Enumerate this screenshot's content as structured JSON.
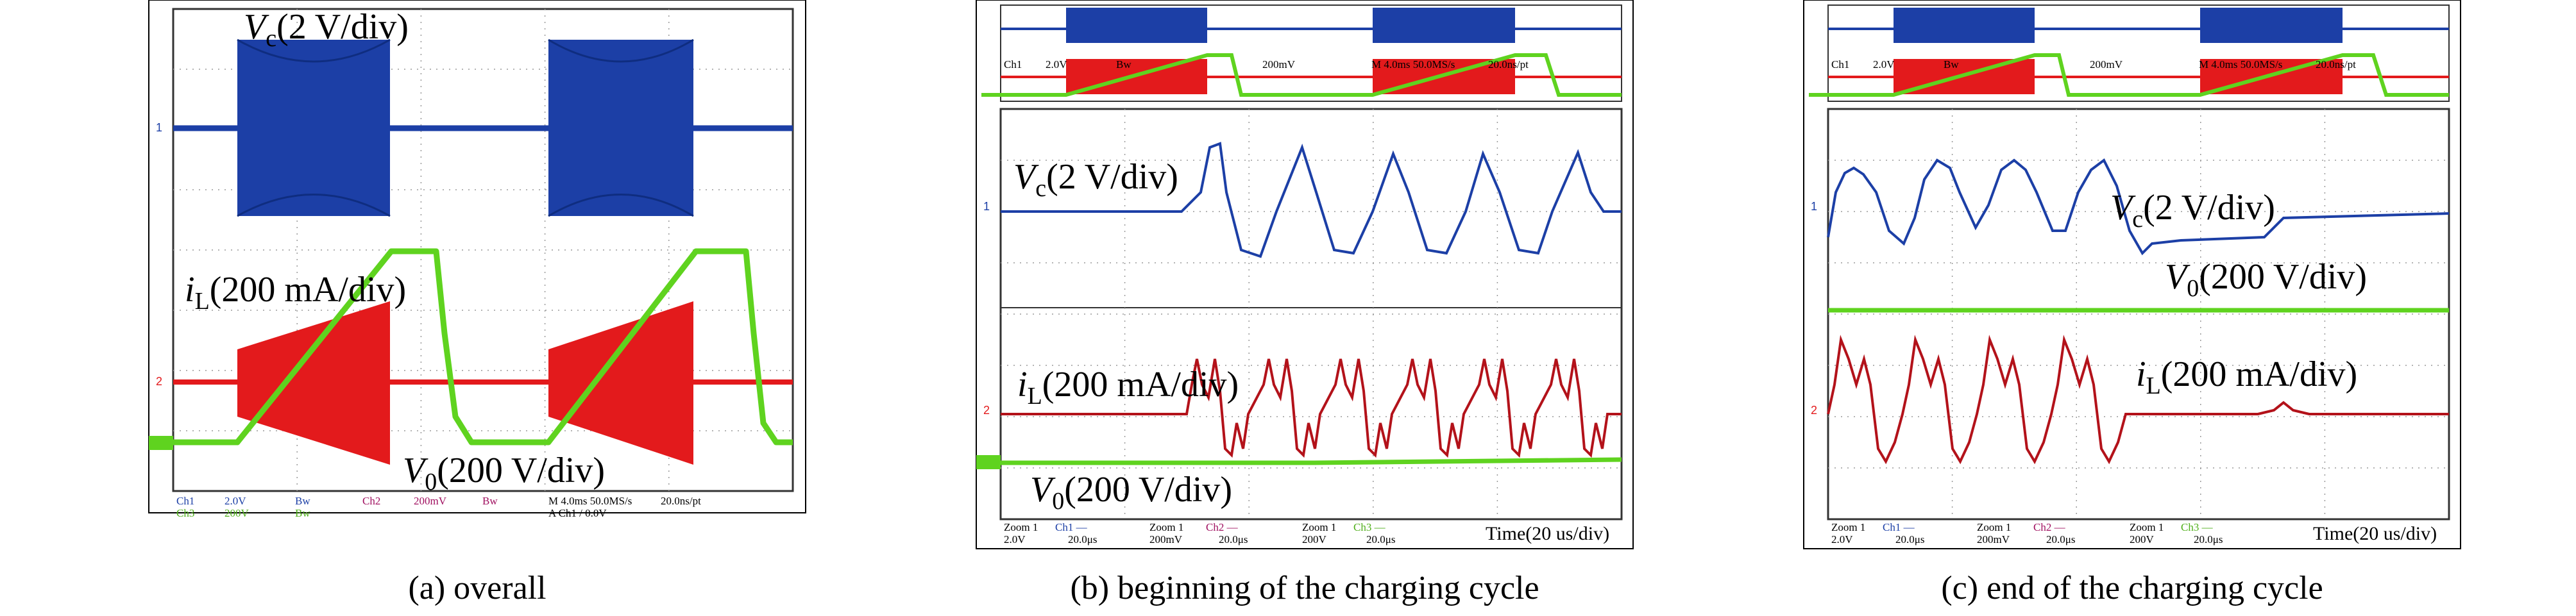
{
  "figure": {
    "panels": [
      {
        "caption": "(a) overall",
        "annotations": {
          "vc": {
            "main": "V",
            "sub": "c",
            "rest": "(2 V/div)"
          },
          "il": {
            "main": "i",
            "sub": "L",
            "rest": "(200 mA/div)"
          },
          "v0": {
            "main": "V",
            "sub": "0",
            "rest": "(200 V/div)"
          }
        },
        "footer": {
          "left": {
            "ch1": "Ch1",
            "ch1v": "2.0V",
            "bw1": "Bw",
            "ch2": "Ch2",
            "ch2v": "200mV",
            "bw2": "Bw"
          },
          "left2": {
            "ch3": "Ch3",
            "ch3v": "200V",
            "bw3": "Bw"
          },
          "timebase": "M 4.0ms 50.0MS/s",
          "rate": "20.0ns/pt",
          "trigger": "A  Ch1  /  0.0V"
        },
        "markers": [
          "1",
          "2"
        ]
      },
      {
        "caption": "(b) beginning of the charging cycle",
        "annotations": {
          "vc": {
            "main": "V",
            "sub": "c",
            "rest": "(2 V/div)"
          },
          "il": {
            "main": "i",
            "sub": "L",
            "rest": "(200 mA/div)"
          },
          "v0": {
            "main": "V",
            "sub": "0",
            "rest": "(200 V/div)"
          }
        },
        "overview_labels": {
          "ch1": "Ch1",
          "ch1v": "2.0V",
          "bw": "Bw",
          "ch2v": "200mV",
          "timebase": "M 4.0ms 50.0MS/s",
          "rate": "20.0ns/pt"
        },
        "footer": {
          "zoom1": "Zoom 1",
          "zoom1v": "2.0V",
          "zoom1ch": "Ch1 —",
          "zoom1t": "20.0μs",
          "zoom2": "Zoom 1",
          "zoom2v": "200mV",
          "zoom2ch": "Ch2 —",
          "zoom2t": "20.0μs",
          "zoom3": "Zoom 1",
          "zoom3v": "200V",
          "zoom3ch": "Ch3 —",
          "zoom3t": "20.0μs",
          "time": "Time(20 us/div)"
        },
        "markers": [
          "1",
          "2"
        ]
      },
      {
        "caption": "(c) end of the charging cycle",
        "annotations": {
          "vc": {
            "main": "V",
            "sub": "c",
            "rest": "(2 V/div)"
          },
          "il": {
            "main": "i",
            "sub": "L",
            "rest": "(200 mA/div)"
          },
          "v0": {
            "main": "V",
            "sub": "0",
            "rest": "(200 V/div)"
          }
        },
        "overview_labels": {
          "ch1": "Ch1",
          "ch1v": "2.0V",
          "bw": "Bw",
          "ch2v": "200mV",
          "timebase": "M 4.0ms 50.0MS/s",
          "rate": "20.0ns/pt"
        },
        "footer": {
          "zoom1": "Zoom 1",
          "zoom1v": "2.0V",
          "zoom1ch": "Ch1 —",
          "zoom1t": "20.0μs",
          "zoom2": "Zoom 1",
          "zoom2v": "200mV",
          "zoom2ch": "Ch2 —",
          "zoom2t": "20.0μs",
          "zoom3": "Zoom 1",
          "zoom3v": "200V",
          "zoom3ch": "Ch3 —",
          "zoom3t": "20.0μs",
          "time": "Time(20 us/div)"
        },
        "markers": [
          "1",
          "2"
        ]
      }
    ],
    "colors": {
      "vc": "#1c3fa6",
      "il": "#e31a1c",
      "v0": "#5fd31f",
      "grid": "#9a9a9a",
      "screen": "#ffffff",
      "frame": "#2f6fb5"
    }
  },
  "chart_data": [
    {
      "type": "line",
      "title": "(a) overall",
      "series": [
        {
          "name": "Vc(2 V/div)",
          "shape": "square burst envelope on two switching intervals, flat between"
        },
        {
          "name": "iL(200 mA/div)",
          "shape": "high-frequency burst during switching intervals"
        },
        {
          "name": "V0(200 V/div)",
          "shape": "linear ramp up during charging, flat top, then fast drop"
        }
      ],
      "grid": true
    },
    {
      "type": "line",
      "title": "(b) beginning of the charging cycle",
      "series": [
        {
          "name": "Vc(2 V/div)",
          "shape": "flat then oscillating pulse train (5 cycles)"
        },
        {
          "name": "iL(200 mA/div)",
          "shape": "flat then double-hump oscillations"
        },
        {
          "name": "V0(200 V/div)",
          "shape": "approximately flat, slowly rising"
        }
      ],
      "grid": true
    },
    {
      "type": "line",
      "title": "(c) end of the charging cycle",
      "series": [
        {
          "name": "Vc(2 V/div)",
          "shape": "oscillation stopping then step up and flat"
        },
        {
          "name": "V0(200 V/div)",
          "shape": "flat"
        },
        {
          "name": "iL(200 mA/div)",
          "shape": "oscillations then flat with small bump"
        }
      ],
      "grid": true
    }
  ]
}
